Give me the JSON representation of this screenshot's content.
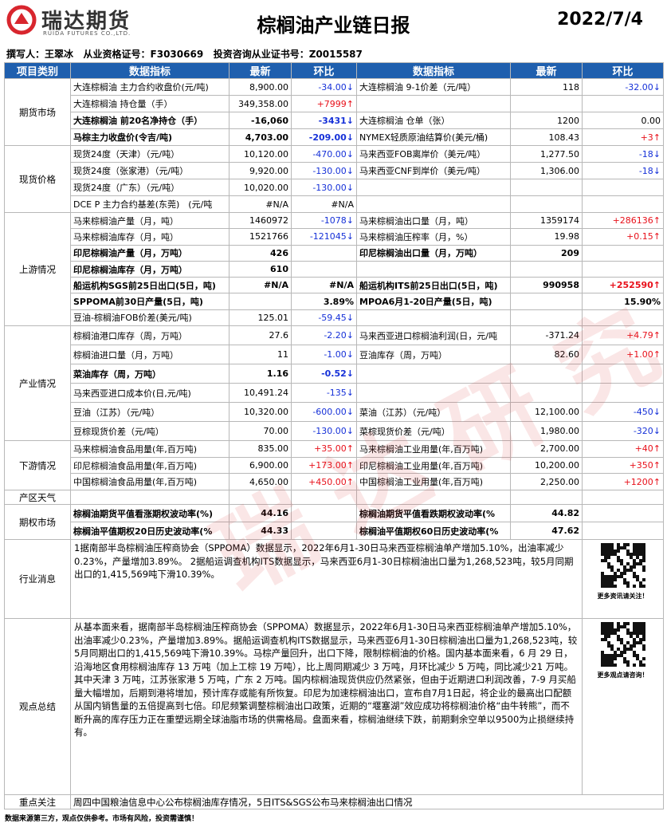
{
  "header": {
    "company": "瑞达期货",
    "company_en": "RUIDA FUTURES CO.,LTD.",
    "title": "棕榈油产业链日报",
    "date": "2022/7/4",
    "author": "撰写人：王翠冰   从业资格证号：F3030669   投资咨询从业证书号：Z0015587"
  },
  "watermark": "瑞 达 研 究",
  "table": {
    "columns": [
      "项目类别",
      "数据指标",
      "最新",
      "环比",
      "数据指标",
      "最新",
      "环比"
    ],
    "sections": [
      {
        "name": "期货市场",
        "rows": [
          {
            "cells": [
              "大连棕榈油 主力合约收盘价(元/吨)",
              "8,900.00",
              "-34.00↓",
              "大连棕榈油 9-1价差（元/吨）",
              "118",
              "-32.00↓"
            ]
          },
          {
            "cells": [
              "大连棕榈油 持仓量（手）",
              "349,358.00",
              "+7999↑",
              null,
              null,
              null
            ]
          },
          {
            "cells": [
              "大连棕榈油 前20名净持仓（手）",
              "-16,060",
              "-3431↓",
              "大连棕榈油 仓单（张）",
              "1200",
              "0.00"
            ],
            "bold_left": true
          },
          {
            "cells": [
              "马棕主力收盘价(令吉/吨)",
              "4,703.00",
              "-209.00↓",
              "NYMEX轻质原油结算价(美元/桶)",
              "108.43",
              "+3↑"
            ],
            "bold_left": true
          }
        ]
      },
      {
        "name": "现货价格",
        "rows": [
          {
            "cells": [
              "现货24度（天津）（元/吨）",
              "10,120.00",
              "-470.00↓",
              "马来西亚FOB离岸价（美元/吨）",
              "1,277.50",
              "-18↓"
            ]
          },
          {
            "cells": [
              "现货24度（张家港）（元/吨）",
              "9,920.00",
              "-130.00↓",
              "马来西亚CNF到岸价（美元/吨）",
              "1,306.00",
              "-18↓"
            ]
          },
          {
            "cells": [
              "现货24度（广东）（元/吨）",
              "10,020.00",
              "-130.00↓",
              null,
              null,
              null
            ]
          },
          {
            "cells": [
              "DCE P 主力合约基差(东莞)　(元/吨",
              "#N/A",
              "#N/A",
              null,
              null,
              null
            ]
          }
        ]
      },
      {
        "name": "上游情况",
        "rows": [
          {
            "cells": [
              "马来棕榈油产量（月，吨）",
              "1460972",
              "-1078↓",
              "马来棕榈油出口量（月，吨）",
              "1359174",
              "+286136↑"
            ]
          },
          {
            "cells": [
              "马来棕榈油库存（月，吨）",
              "1521766",
              "-121045↓",
              "马来棕榈油压榨率（月，%）",
              "19.98",
              "+0.15↑"
            ]
          },
          {
            "cells": [
              "印尼棕榈油产量（月，万吨）",
              "426",
              null,
              "印尼棕榈油出口量（月，万吨）",
              "209",
              null
            ],
            "bold_left": true,
            "bold_right": true
          },
          {
            "cells": [
              "印尼棕榈油库存（月，万吨）",
              "610",
              null,
              null,
              null,
              null
            ],
            "bold_left": true
          },
          {
            "cells": [
              "船运机构SGS前25日出口(5日，吨)",
              "#N/A",
              "#N/A",
              "船运机构ITS前25日出口(5日，吨)",
              "990958",
              "+252590↑"
            ],
            "bold_left": true,
            "bold_right": true
          },
          {
            "cells": [
              "SPPOMA前30日产量(5日，吨)",
              null,
              "3.89%",
              "MPOA6月1-20日产量(5日，吨)",
              null,
              "15.90%"
            ],
            "bold_left": true,
            "bold_right": true
          },
          {
            "cells": [
              "豆油-棕榈油FOB价差(美元/吨)",
              "125.01",
              "-59.45↓",
              null,
              null,
              null
            ]
          }
        ]
      },
      {
        "name": "产业情况",
        "rows": [
          {
            "cells": [
              "棕榈油港口库存（周，万吨）",
              "27.6",
              "-2.20↓",
              "马来西亚进口棕榈油利润(日，元/吨",
              "-371.24",
              "+4.79↑"
            ]
          },
          {
            "cells": [
              "棕榈油进口量（月，万吨）",
              "11",
              "-1.00↓",
              "豆油库存（周，万吨）",
              "82.60",
              "+1.00↑"
            ]
          },
          {
            "cells": [
              "菜油库存（周，万吨）",
              "1.16",
              "-0.52↓",
              null,
              null,
              null
            ],
            "bold_left": true
          },
          {
            "cells": [
              "马来西亚进口成本价(日,元/吨)",
              "10,491.24",
              "-135↓",
              null,
              null,
              null
            ]
          },
          {
            "cells": [
              "豆油（江苏）（元/吨）",
              "10,320.00",
              "-600.00↓",
              "菜油（江苏）（元/吨）",
              "12,100.00",
              "-450↓"
            ]
          },
          {
            "cells": [
              "豆棕现货价差（元/吨）",
              "70.00",
              "-130.00↓",
              "菜棕现货价差（元/吨）",
              "1,980.00",
              "-320↓"
            ]
          }
        ]
      },
      {
        "name": "下游情况",
        "rows": [
          {
            "cells": [
              "马来棕榈油食品用量(年,百万吨)",
              "835.00",
              "+35.00↑",
              "马来棕榈油工业用量(年,百万吨)",
              "2,700.00",
              "+40↑"
            ]
          },
          {
            "cells": [
              "印尼棕榈油食品用量(年,百万吨)",
              "6,900.00",
              "+173.00↑",
              "印尼棕榈油工业用量(年,百万吨)",
              "10,200.00",
              "+350↑"
            ]
          },
          {
            "cells": [
              "中国棕榈油食品用量(年,百万吨)",
              "4,650.00",
              "+450.00↑",
              "中国棕榈油工业用量(年,百万吨)",
              "2,250.00",
              "+1200↑"
            ]
          }
        ]
      },
      {
        "name": "产区天气",
        "rows": []
      },
      {
        "name": "期权市场",
        "rows": [
          {
            "cells": [
              "棕榈油期货平值看涨期权波动率(%)",
              "44.16",
              null,
              "棕榈油期货平值看跌期权波动率(%",
              "44.82",
              null
            ],
            "bold_left": true,
            "bold_right": true
          },
          {
            "cells": [
              "棕榈油平值期权20日历史波动率(%",
              "44.33",
              null,
              "棕榈油平值期权60日历史波动率(%",
              "47.62",
              null
            ],
            "bold_left": true,
            "bold_right": true
          }
        ]
      }
    ],
    "news": {
      "name": "行业消息",
      "text": "1据南部半岛棕榈油压榨商协会（SPPOMA）数据显示，2022年6月1-30日马来西亚棕榈油单产增加5.10%，出油率减少0.23%，产量增加3.89%。\n2据船运调查机构ITS数据显示，马来西亚6月1-30日棕榈油出口量为1,268,523吨，较5月同期出口的1,415,569吨下滑10.39%。",
      "qr_caption": "更多资讯请关注！"
    },
    "view": {
      "name": "观点总结",
      "text": "从基本面来看，据南部半岛棕榈油压榨商协会（SPPOMA）数据显示，2022年6月1-30日马来西亚棕榈油单产增加5.10%，出油率减少0.23%，产量增加3.89%。据船运调查机构ITS数据显示，马来西亚6月1-30日棕榈油出口量为1,268,523吨，较5月同期出口的1,415,569吨下滑10.39%。马棕产量回升，出口下降，限制棕榈油的价格。国内基本面来看，6 月 29 日，沿海地区食用棕榈油库存 13 万吨（加上工棕 19 万吨），比上周同期减少 3 万吨，月环比减少 5 万吨，同比减少21 万吨。其中天津 3 万吨，江苏张家港 5 万吨，广东 2 万吨。国内棕榈油现货供应仍然紧张，但由于近期进口利润改善，7-9 月买船量大幅增加，后期到港将增加，预计库存或能有所恢复。印尼为加速棕榈油出口，宣布自7月1日起，将企业的最高出口配额从国内销售量的五倍提高到七倍。印尼频繁调整棕榈油出口政策，近期的“堰塞湖”效应成功将棕榈油价格“由牛转熊”，而不断升高的库存压力正在重塑远期全球油脂市场的供需格局。盘面来看，棕榈油继续下跌，前期剩余空单以9500为止损继续持有。",
      "qr_caption": "更多观点请咨询！"
    },
    "focus": {
      "name": "重点关注",
      "text": "周四中国粮油信息中心公布棕榈油库存情况，5日ITS&SGS公布马来棕榈油出口情况"
    }
  },
  "footer": "数据来源第三方，观点仅供参考。市场有风险，投资需谨慎！"
}
